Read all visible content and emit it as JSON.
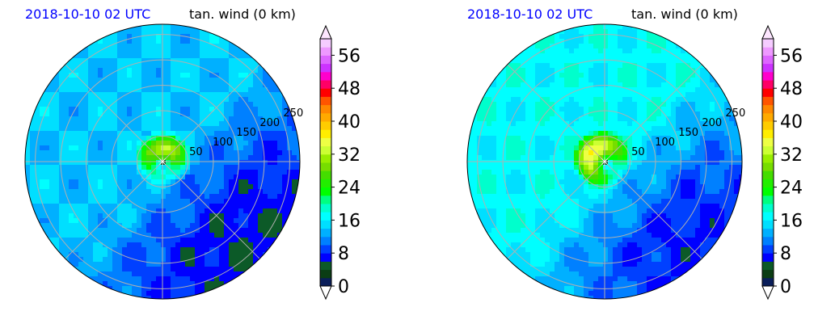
{
  "panels": [
    {
      "timestamp": "2018-10-10 02 UTC",
      "variable": "tan. wind (0 km)",
      "ring_labels": [
        "50",
        "100",
        "150",
        "200",
        "250"
      ]
    },
    {
      "timestamp": "2018-10-10 02 UTC",
      "variable": "tan. wind (0 km)",
      "ring_labels": [
        "50",
        "100",
        "150",
        "200",
        "250"
      ]
    }
  ],
  "colorbar": {
    "tick_labels": [
      "0",
      "8",
      "16",
      "24",
      "32",
      "40",
      "48",
      "56"
    ],
    "levels": [
      0,
      2,
      4,
      6,
      8,
      10,
      12,
      14,
      16,
      18,
      20,
      22,
      24,
      26,
      28,
      30,
      32,
      34,
      36,
      38,
      40,
      42,
      44,
      46,
      48,
      50,
      52,
      54,
      56,
      58,
      60
    ],
    "colors": [
      "#0a1e5a",
      "#0b3d14",
      "#0c5a28",
      "#0000ff",
      "#0040ff",
      "#0080ff",
      "#00b0ff",
      "#00dfff",
      "#00ffff",
      "#00ffcc",
      "#00ff80",
      "#00ff00",
      "#22ee00",
      "#44dd00",
      "#77dd00",
      "#99ee00",
      "#ccff33",
      "#eeff44",
      "#ffee00",
      "#ffcc00",
      "#ffaa00",
      "#ff8800",
      "#ff5500",
      "#ff0000",
      "#ff0066",
      "#ff00cc",
      "#cc33ff",
      "#dd66ff",
      "#ee99ff",
      "#f5ccff"
    ]
  },
  "chart_data": [
    {
      "type": "heatmap",
      "projection": "polar",
      "title_left": "2018-10-10 02 UTC",
      "title_right": "tan. wind (0 km)",
      "radial_ticks_km": [
        50,
        100,
        150,
        200,
        250
      ],
      "value_range": [
        0,
        60
      ],
      "colorbar_ticks": [
        0,
        8,
        16,
        24,
        32,
        40,
        48,
        56
      ],
      "approx_field": {
        "max_value": 34,
        "max_near_radius_km": 25,
        "max_direction": "north",
        "background_value": 14,
        "low_sector": "south-east"
      }
    },
    {
      "type": "heatmap",
      "projection": "polar",
      "title_left": "2018-10-10 02 UTC",
      "title_right": "tan. wind (0 km)",
      "radial_ticks_km": [
        50,
        100,
        150,
        200,
        250
      ],
      "value_range": [
        0,
        60
      ],
      "colorbar_ticks": [
        0,
        8,
        16,
        24,
        32,
        40,
        48,
        56
      ],
      "approx_field": {
        "max_value": 38,
        "max_near_radius_km": 30,
        "max_direction": "north-west",
        "background_value": 17,
        "low_sector": "south-east"
      }
    }
  ]
}
